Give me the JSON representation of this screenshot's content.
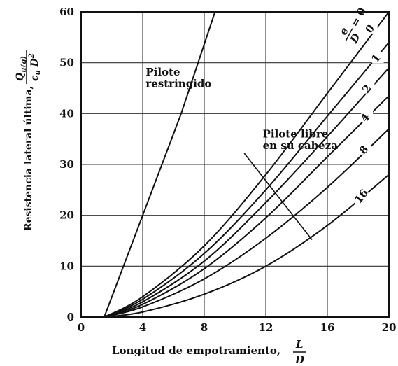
{
  "chart_data": {
    "type": "line",
    "xlabel_prefix": "Longitud de empotramiento,",
    "xlabel_frac": {
      "num": "L",
      "den": "D"
    },
    "ylabel_prefix": "Resistencia lateral última,",
    "ylabel_frac": {
      "num": "Qu(g)",
      "den": "cu D2"
    },
    "xlim": [
      0,
      20
    ],
    "ylim": [
      0,
      60
    ],
    "xticks": [
      "0",
      "4",
      "8",
      "12",
      "16",
      "20"
    ],
    "yticks": [
      "0",
      "10",
      "20",
      "30",
      "40",
      "50",
      "60"
    ],
    "grid": true,
    "series": [
      {
        "name": "Pilote restringido",
        "x": [
          1.5,
          4,
          6.5,
          8.7
        ],
        "y": [
          0,
          20,
          40,
          60
        ]
      },
      {
        "name": "e/D = 0",
        "x": [
          1.5,
          4,
          8,
          12,
          16,
          20
        ],
        "y": [
          0,
          4,
          14,
          28,
          44,
          60
        ]
      },
      {
        "name": "1",
        "x": [
          1.5,
          4,
          8,
          12,
          16,
          20
        ],
        "y": [
          0,
          3.5,
          12.5,
          25,
          39.5,
          54
        ]
      },
      {
        "name": "2",
        "x": [
          1.5,
          4,
          8,
          12,
          16,
          20
        ],
        "y": [
          0,
          3,
          11,
          22.5,
          35.5,
          49
        ]
      },
      {
        "name": "4",
        "x": [
          1.5,
          4,
          8,
          12,
          16,
          20
        ],
        "y": [
          0,
          2.5,
          9.5,
          19.5,
          31.5,
          43.5
        ]
      },
      {
        "name": "8",
        "x": [
          1.5,
          4,
          8,
          12,
          16,
          20
        ],
        "y": [
          0,
          2,
          7.5,
          15.5,
          25.5,
          37
        ]
      },
      {
        "name": "16",
        "x": [
          1.5,
          4,
          8,
          12,
          16,
          20
        ],
        "y": [
          0,
          1,
          4.5,
          10,
          18,
          28
        ]
      }
    ],
    "annotations": [
      {
        "text": "Pilote",
        "x": 4.2,
        "y": 47.5
      },
      {
        "text": "restringido",
        "x": 4.2,
        "y": 45.2
      },
      {
        "text": "Pilote libre",
        "x": 11.8,
        "y": 35.3
      },
      {
        "text": "en su cabeza",
        "x": 11.8,
        "y": 33.0
      }
    ],
    "curve_labels": [
      {
        "text": "0",
        "x": 18.9,
        "y": 56.3
      },
      {
        "text": "1",
        "x": 19.3,
        "y": 50.5
      },
      {
        "text": "2",
        "x": 18.7,
        "y": 44.5
      },
      {
        "text": "4",
        "x": 18.6,
        "y": 38.8
      },
      {
        "text": "8",
        "x": 18.5,
        "y": 32.5
      },
      {
        "text": "16",
        "x": 18.2,
        "y": 22.8
      }
    ],
    "e_over_d": {
      "num": "e",
      "den": "D",
      "equals": "= 0"
    }
  }
}
